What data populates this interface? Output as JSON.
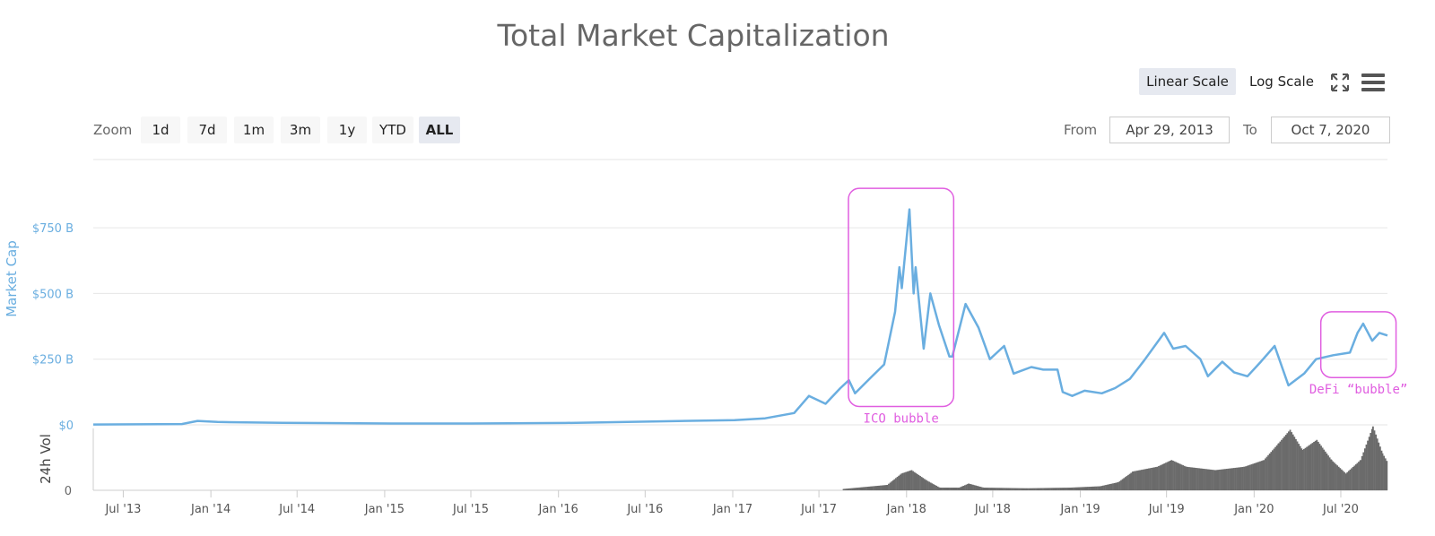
{
  "title": "Total Market Capitalization",
  "scale_buttons": [
    {
      "label": "Linear Scale",
      "selected": true
    },
    {
      "label": "Log Scale",
      "selected": false
    }
  ],
  "icons": {
    "fullscreen": "expand-arrows-icon",
    "menu": "hamburger-menu-icon"
  },
  "zoom": {
    "label": "Zoom",
    "buttons": [
      "1d",
      "7d",
      "1m",
      "3m",
      "1y",
      "YTD",
      "ALL"
    ],
    "selected": "ALL"
  },
  "range": {
    "from_label": "From",
    "from_value": "Apr 29, 2013",
    "to_label": "To",
    "to_value": "Oct 7, 2020"
  },
  "colors": {
    "line": "#6aaee0",
    "volume": "#6b6b6b",
    "annotation": "#e05ee0",
    "selected_button": "#e6e9f0"
  },
  "chart_data": [
    {
      "type": "line",
      "ylabel": "Market Cap",
      "y_unit": "USD billions",
      "yticks": [
        "$0",
        "$250 B",
        "$500 B",
        "$750 B"
      ],
      "ytick_values": [
        0,
        250,
        500,
        750
      ],
      "ylim": [
        0,
        900
      ],
      "xlim": [
        "2013-04-29",
        "2020-10-07"
      ],
      "xticks": [
        "Jul '13",
        "Jan '14",
        "Jul '14",
        "Jan '15",
        "Jul '15",
        "Jan '16",
        "Jul '16",
        "Jan '17",
        "Jul '17",
        "Jan '18",
        "Jul '18",
        "Jan '19",
        "Jul '19",
        "Jan '20",
        "Jul '20"
      ],
      "xtick_dates": [
        "2013-07-01",
        "2014-01-01",
        "2014-07-01",
        "2015-01-01",
        "2015-07-01",
        "2016-01-01",
        "2016-07-01",
        "2017-01-01",
        "2017-07-01",
        "2018-01-01",
        "2018-07-01",
        "2019-01-01",
        "2019-07-01",
        "2020-01-01",
        "2020-07-01"
      ],
      "grid": true,
      "series": [
        {
          "name": "Market Cap",
          "points": [
            [
              "2013-04-29",
              1.5
            ],
            [
              "2013-11-01",
              3
            ],
            [
              "2013-12-04",
              15
            ],
            [
              "2014-01-15",
              11
            ],
            [
              "2014-06-01",
              8
            ],
            [
              "2015-01-15",
              5
            ],
            [
              "2015-07-01",
              5
            ],
            [
              "2016-01-15",
              7
            ],
            [
              "2016-06-20",
              12
            ],
            [
              "2017-01-05",
              18
            ],
            [
              "2017-03-10",
              25
            ],
            [
              "2017-05-10",
              45
            ],
            [
              "2017-06-10",
              110
            ],
            [
              "2017-07-15",
              80
            ],
            [
              "2017-08-15",
              140
            ],
            [
              "2017-09-02",
              170
            ],
            [
              "2017-09-15",
              120
            ],
            [
              "2017-10-15",
              175
            ],
            [
              "2017-11-15",
              230
            ],
            [
              "2017-12-08",
              430
            ],
            [
              "2017-12-17",
              600
            ],
            [
              "2017-12-22",
              520
            ],
            [
              "2018-01-07",
              820
            ],
            [
              "2018-01-16",
              500
            ],
            [
              "2018-01-20",
              600
            ],
            [
              "2018-02-06",
              290
            ],
            [
              "2018-02-20",
              500
            ],
            [
              "2018-03-10",
              380
            ],
            [
              "2018-04-01",
              260
            ],
            [
              "2018-04-07",
              260
            ],
            [
              "2018-05-05",
              460
            ],
            [
              "2018-06-01",
              370
            ],
            [
              "2018-06-25",
              250
            ],
            [
              "2018-07-25",
              300
            ],
            [
              "2018-08-14",
              195
            ],
            [
              "2018-09-20",
              220
            ],
            [
              "2018-10-15",
              210
            ],
            [
              "2018-11-14",
              210
            ],
            [
              "2018-11-25",
              125
            ],
            [
              "2018-12-15",
              110
            ],
            [
              "2019-01-10",
              130
            ],
            [
              "2019-02-15",
              120
            ],
            [
              "2019-03-15",
              140
            ],
            [
              "2019-04-15",
              175
            ],
            [
              "2019-05-15",
              245
            ],
            [
              "2019-06-26",
              350
            ],
            [
              "2019-07-15",
              290
            ],
            [
              "2019-08-10",
              300
            ],
            [
              "2019-09-10",
              250
            ],
            [
              "2019-09-26",
              185
            ],
            [
              "2019-10-26",
              240
            ],
            [
              "2019-11-20",
              200
            ],
            [
              "2019-12-18",
              185
            ],
            [
              "2020-01-15",
              240
            ],
            [
              "2020-02-13",
              300
            ],
            [
              "2020-03-13",
              150
            ],
            [
              "2020-04-15",
              195
            ],
            [
              "2020-05-10",
              250
            ],
            [
              "2020-06-15",
              265
            ],
            [
              "2020-07-20",
              275
            ],
            [
              "2020-08-05",
              350
            ],
            [
              "2020-08-17",
              385
            ],
            [
              "2020-09-05",
              320
            ],
            [
              "2020-09-20",
              350
            ],
            [
              "2020-10-07",
              340
            ]
          ]
        }
      ],
      "annotations": [
        {
          "label": "ICO bubble",
          "from": "2017-09-01",
          "to": "2018-04-10",
          "ymin": 70,
          "ymax": 900
        },
        {
          "label": "DeFi “bubble”",
          "from": "2020-05-20",
          "to": "2020-10-25",
          "ymin": 180,
          "ymax": 430
        }
      ]
    },
    {
      "type": "bar",
      "ylabel": "24h Vol",
      "yticks": [
        "0"
      ],
      "ylim": [
        0,
        100
      ],
      "series": [
        {
          "name": "24h Vol",
          "points": [
            [
              "2017-08-20",
              2
            ],
            [
              "2017-11-20",
              8
            ],
            [
              "2017-12-20",
              25
            ],
            [
              "2018-01-10",
              30
            ],
            [
              "2018-02-10",
              15
            ],
            [
              "2018-03-10",
              4
            ],
            [
              "2018-04-20",
              4
            ],
            [
              "2018-05-10",
              10
            ],
            [
              "2018-06-10",
              4
            ],
            [
              "2018-09-10",
              3
            ],
            [
              "2018-12-10",
              4
            ],
            [
              "2019-02-10",
              6
            ],
            [
              "2019-03-20",
              12
            ],
            [
              "2019-04-20",
              28
            ],
            [
              "2019-06-10",
              35
            ],
            [
              "2019-07-10",
              45
            ],
            [
              "2019-08-10",
              35
            ],
            [
              "2019-10-10",
              30
            ],
            [
              "2019-12-10",
              35
            ],
            [
              "2020-01-20",
              45
            ],
            [
              "2020-02-20",
              70
            ],
            [
              "2020-03-15",
              90
            ],
            [
              "2020-04-10",
              60
            ],
            [
              "2020-05-10",
              75
            ],
            [
              "2020-06-10",
              45
            ],
            [
              "2020-07-10",
              25
            ],
            [
              "2020-08-10",
              45
            ],
            [
              "2020-09-05",
              95
            ],
            [
              "2020-09-25",
              55
            ],
            [
              "2020-10-07",
              40
            ]
          ]
        }
      ]
    }
  ]
}
